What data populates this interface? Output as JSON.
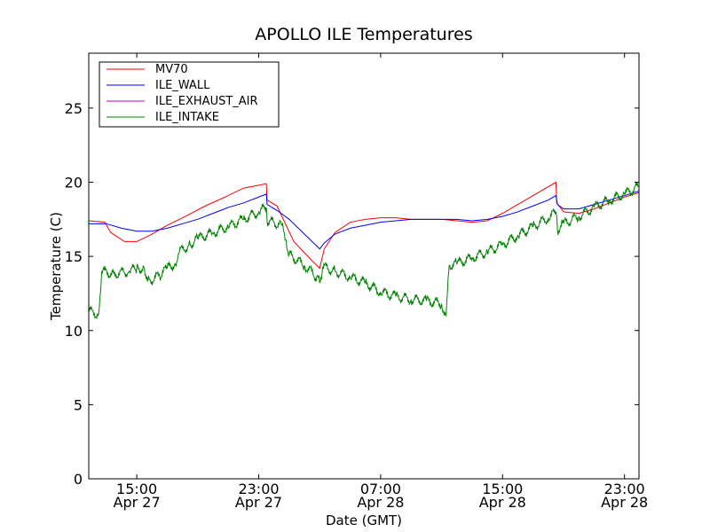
{
  "chart_data": {
    "type": "line",
    "title": "APOLLO ILE Temperatures",
    "xlabel": "Date (GMT)",
    "ylabel": "Temperature (C)",
    "x_ticks": [
      {
        "time": "15:00",
        "date": "Apr 27",
        "hour": 15
      },
      {
        "time": "23:00",
        "date": "Apr 27",
        "hour": 23
      },
      {
        "time": "07:00",
        "date": "Apr 28",
        "hour": 31
      },
      {
        "time": "15:00",
        "date": "Apr 28",
        "hour": 39
      },
      {
        "time": "23:00",
        "date": "Apr 28",
        "hour": 47
      }
    ],
    "y_ticks": [
      0,
      5,
      10,
      15,
      20,
      25
    ],
    "xlim": [
      11.85,
      47.95
    ],
    "ylim": [
      0,
      28.7
    ],
    "grid": false,
    "legend_position": "top-left",
    "series": [
      {
        "name": "MV70",
        "color": "#ff0000",
        "points": [
          [
            11.85,
            17.4
          ],
          [
            12.9,
            17.3
          ],
          [
            13.3,
            16.6
          ],
          [
            14.2,
            16.0
          ],
          [
            15.0,
            16.0
          ],
          [
            16.0,
            16.5
          ],
          [
            17.0,
            17.1
          ],
          [
            18.0,
            17.6
          ],
          [
            19.5,
            18.4
          ],
          [
            21.0,
            19.1
          ],
          [
            22.0,
            19.6
          ],
          [
            23.0,
            19.8
          ],
          [
            23.5,
            19.9
          ],
          [
            23.55,
            18.8
          ],
          [
            24.2,
            18.4
          ],
          [
            25.3,
            16.0
          ],
          [
            26.5,
            14.7
          ],
          [
            27.0,
            14.2
          ],
          [
            27.3,
            15.5
          ],
          [
            28.0,
            16.6
          ],
          [
            29.0,
            17.3
          ],
          [
            30.0,
            17.5
          ],
          [
            31.0,
            17.6
          ],
          [
            32.0,
            17.6
          ],
          [
            33.0,
            17.5
          ],
          [
            34.0,
            17.5
          ],
          [
            35.0,
            17.5
          ],
          [
            36.0,
            17.4
          ],
          [
            37.0,
            17.3
          ],
          [
            38.0,
            17.4
          ],
          [
            39.0,
            17.9
          ],
          [
            40.0,
            18.5
          ],
          [
            41.0,
            19.1
          ],
          [
            42.0,
            19.7
          ],
          [
            42.5,
            20.0
          ],
          [
            42.55,
            18.6
          ],
          [
            43.0,
            18.0
          ],
          [
            44.0,
            17.9
          ],
          [
            45.0,
            18.2
          ],
          [
            46.0,
            18.6
          ],
          [
            47.0,
            19.0
          ],
          [
            47.95,
            19.3
          ]
        ]
      },
      {
        "name": "ILE_WALL",
        "color": "#0000ff",
        "points": [
          [
            11.85,
            17.2
          ],
          [
            13.0,
            17.2
          ],
          [
            14.0,
            16.9
          ],
          [
            15.0,
            16.7
          ],
          [
            16.0,
            16.7
          ],
          [
            17.0,
            16.9
          ],
          [
            18.0,
            17.2
          ],
          [
            19.0,
            17.5
          ],
          [
            20.0,
            17.9
          ],
          [
            21.0,
            18.3
          ],
          [
            22.0,
            18.6
          ],
          [
            23.0,
            19.0
          ],
          [
            23.5,
            19.2
          ],
          [
            23.55,
            18.5
          ],
          [
            24.2,
            18.1
          ],
          [
            25.0,
            17.5
          ],
          [
            26.0,
            16.5
          ],
          [
            27.0,
            15.5
          ],
          [
            27.3,
            15.9
          ],
          [
            28.0,
            16.5
          ],
          [
            29.0,
            16.9
          ],
          [
            30.0,
            17.1
          ],
          [
            31.0,
            17.3
          ],
          [
            32.0,
            17.4
          ],
          [
            33.0,
            17.5
          ],
          [
            34.0,
            17.5
          ],
          [
            35.0,
            17.5
          ],
          [
            36.0,
            17.5
          ],
          [
            37.0,
            17.4
          ],
          [
            38.0,
            17.5
          ],
          [
            39.0,
            17.7
          ],
          [
            40.0,
            18.0
          ],
          [
            41.0,
            18.4
          ],
          [
            42.0,
            18.8
          ],
          [
            42.5,
            19.1
          ],
          [
            42.6,
            18.5
          ],
          [
            43.0,
            18.2
          ],
          [
            44.0,
            18.2
          ],
          [
            45.0,
            18.5
          ],
          [
            46.0,
            18.8
          ],
          [
            47.0,
            19.1
          ],
          [
            47.95,
            19.4
          ]
        ]
      },
      {
        "name": "ILE_EXHAUST_AIR",
        "color": "#bf00bf",
        "points": []
      },
      {
        "name": "ILE_INTAKE",
        "color": "#008000",
        "points": [
          [
            11.85,
            11.3
          ],
          [
            12.5,
            11.1
          ],
          [
            12.7,
            14.0
          ],
          [
            13.5,
            13.8
          ],
          [
            14.5,
            14.0
          ],
          [
            15.0,
            14.2
          ],
          [
            15.5,
            14.2
          ],
          [
            15.7,
            13.3
          ],
          [
            16.5,
            13.7
          ],
          [
            17.0,
            14.2
          ],
          [
            17.5,
            14.5
          ],
          [
            17.8,
            15.3
          ],
          [
            18.5,
            15.8
          ],
          [
            19.0,
            16.2
          ],
          [
            20.0,
            16.6
          ],
          [
            21.0,
            17.0
          ],
          [
            22.0,
            17.5
          ],
          [
            23.0,
            18.0
          ],
          [
            23.5,
            18.3
          ],
          [
            23.55,
            17.4
          ],
          [
            24.5,
            17.1
          ],
          [
            24.8,
            16.1
          ],
          [
            25.0,
            15.1
          ],
          [
            26.0,
            14.4
          ],
          [
            26.8,
            13.6
          ],
          [
            27.0,
            13.2
          ],
          [
            27.2,
            14.3
          ],
          [
            28.0,
            14.0
          ],
          [
            29.0,
            13.6
          ],
          [
            30.0,
            13.2
          ],
          [
            31.0,
            12.6
          ],
          [
            32.0,
            12.3
          ],
          [
            33.0,
            12.1
          ],
          [
            34.0,
            12.0
          ],
          [
            35.0,
            11.8
          ],
          [
            35.3,
            11.0
          ],
          [
            35.5,
            14.4
          ],
          [
            36.0,
            14.5
          ],
          [
            37.0,
            14.9
          ],
          [
            38.0,
            15.3
          ],
          [
            39.0,
            15.8
          ],
          [
            40.0,
            16.4
          ],
          [
            41.0,
            17.0
          ],
          [
            42.0,
            17.6
          ],
          [
            42.5,
            18.0
          ],
          [
            42.6,
            16.8
          ],
          [
            43.0,
            17.2
          ],
          [
            44.0,
            17.7
          ],
          [
            45.0,
            18.3
          ],
          [
            46.0,
            18.8
          ],
          [
            47.0,
            19.2
          ],
          [
            47.95,
            19.7
          ]
        ]
      }
    ]
  }
}
